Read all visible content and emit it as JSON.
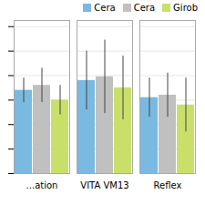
{
  "chart_data": {
    "type": "bar",
    "categories": [
      "...ation",
      "VITA VM13",
      "Reflex"
    ],
    "series": [
      {
        "name": "Cera",
        "color": "#7ab9e0",
        "values": [
          0.68,
          0.76,
          0.62
        ],
        "errors": [
          0.1,
          0.24,
          0.16
        ]
      },
      {
        "name": "Cera",
        "color": "#c0c0c0",
        "values": [
          0.72,
          0.79,
          0.64
        ],
        "errors": [
          0.14,
          0.3,
          0.18
        ]
      },
      {
        "name": "Girob",
        "color": "#c8e06a",
        "values": [
          0.6,
          0.7,
          0.56
        ],
        "errors": [
          0.12,
          0.26,
          0.22
        ]
      }
    ],
    "ylim": [
      0,
      1.25
    ],
    "yticks": [
      0,
      0.2,
      0.4,
      0.6,
      0.8,
      1.0,
      1.2
    ],
    "grid": true,
    "tick_labels": "x",
    "legend": "upper right"
  }
}
